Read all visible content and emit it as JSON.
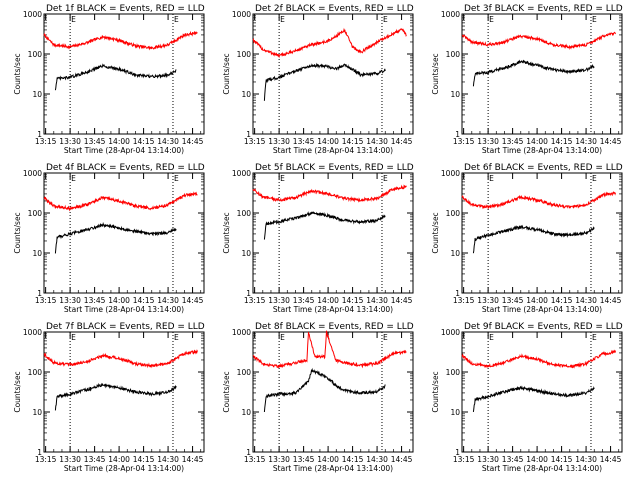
{
  "chart_data": [
    {
      "type": "line",
      "title": "Det 1f BLACK = Events, RED = LLD",
      "xlabel": "Start Time (28-Apr-04 13:14:00)",
      "ylabel": "Counts/sec",
      "x_ticks": [
        "13:15",
        "13:30",
        "13:45",
        "14:00",
        "14:15",
        "14:30",
        "14:45"
      ],
      "y_ticks": [
        "1",
        "10",
        "100",
        "1000"
      ],
      "ylim": [
        1,
        1000
      ],
      "y_scale": "log",
      "markers": [
        {
          "label": "E",
          "x": "13:30"
        },
        {
          "label": "E",
          "x": "14:33"
        }
      ],
      "series": [
        {
          "name": "RED",
          "color": "#ff0000",
          "x": [
            "13:14",
            "13:20",
            "13:30",
            "13:40",
            "13:50",
            "14:00",
            "14:10",
            "14:20",
            "14:30",
            "14:40",
            "14:48"
          ],
          "values": [
            300,
            170,
            150,
            190,
            270,
            220,
            160,
            140,
            170,
            300,
            340
          ]
        },
        {
          "name": "BLACK",
          "color": "#000000",
          "x": [
            "13:21",
            "13:22",
            "13:30",
            "13:40",
            "13:50",
            "14:00",
            "14:10",
            "14:20",
            "14:30",
            "14:35"
          ],
          "values": [
            13,
            24,
            26,
            35,
            50,
            42,
            30,
            27,
            30,
            38
          ]
        }
      ]
    },
    {
      "type": "line",
      "title": "Det 2f BLACK = Events, RED = LLD",
      "xlabel": "Start Time (28-Apr-04 13:14:00)",
      "ylabel": "Counts/sec",
      "x_ticks": [
        "13:15",
        "13:30",
        "13:45",
        "14:00",
        "14:15",
        "14:30",
        "14:45"
      ],
      "y_ticks": [
        "1",
        "10",
        "100",
        "1000"
      ],
      "ylim": [
        1,
        1000
      ],
      "y_scale": "log",
      "markers": [
        {
          "label": "E",
          "x": "13:30"
        },
        {
          "label": "E",
          "x": "14:33"
        }
      ],
      "series": [
        {
          "name": "RED",
          "color": "#ff0000",
          "x": [
            "13:14",
            "13:20",
            "13:30",
            "13:40",
            "13:50",
            "14:00",
            "14:05",
            "14:10",
            "14:15",
            "14:20",
            "14:30",
            "14:40",
            "14:45",
            "14:48"
          ],
          "values": [
            230,
            130,
            90,
            120,
            170,
            210,
            280,
            400,
            150,
            110,
            200,
            320,
            420,
            300
          ]
        },
        {
          "name": "BLACK",
          "color": "#000000",
          "x": [
            "13:21",
            "13:22",
            "13:30",
            "13:40",
            "13:50",
            "14:00",
            "14:05",
            "14:10",
            "14:20",
            "14:30",
            "14:35"
          ],
          "values": [
            7,
            22,
            26,
            38,
            52,
            48,
            42,
            55,
            30,
            32,
            40
          ]
        }
      ]
    },
    {
      "type": "line",
      "title": "Det 3f BLACK = Events, RED = LLD",
      "xlabel": "Start Time (28-Apr-04 13:14:00)",
      "ylabel": "Counts/sec",
      "x_ticks": [
        "13:15",
        "13:30",
        "13:45",
        "14:00",
        "14:15",
        "14:30",
        "14:45"
      ],
      "y_ticks": [
        "1",
        "10",
        "100",
        "1000"
      ],
      "ylim": [
        1,
        1000
      ],
      "y_scale": "log",
      "markers": [
        {
          "label": "E",
          "x": "13:30"
        },
        {
          "label": "E",
          "x": "14:33"
        }
      ],
      "series": [
        {
          "name": "RED",
          "color": "#ff0000",
          "x": [
            "13:14",
            "13:20",
            "13:30",
            "13:40",
            "13:50",
            "14:00",
            "14:10",
            "14:20",
            "14:30",
            "14:40",
            "14:48"
          ],
          "values": [
            300,
            200,
            170,
            200,
            280,
            240,
            170,
            150,
            170,
            270,
            330
          ]
        },
        {
          "name": "BLACK",
          "color": "#000000",
          "x": [
            "13:21",
            "13:22",
            "13:30",
            "13:40",
            "13:50",
            "14:00",
            "14:10",
            "14:20",
            "14:30",
            "14:35"
          ],
          "values": [
            16,
            32,
            35,
            45,
            65,
            52,
            40,
            36,
            40,
            50
          ]
        }
      ]
    },
    {
      "type": "line",
      "title": "Det 4f BLACK = Events, RED = LLD",
      "xlabel": "Start Time (28-Apr-04 13:14:00)",
      "ylabel": "Counts/sec",
      "x_ticks": [
        "13:15",
        "13:30",
        "13:45",
        "14:00",
        "14:15",
        "14:30",
        "14:45"
      ],
      "y_ticks": [
        "1",
        "10",
        "100",
        "1000"
      ],
      "ylim": [
        1,
        1000
      ],
      "y_scale": "log",
      "markers": [
        {
          "label": "E",
          "x": "13:30"
        },
        {
          "label": "E",
          "x": "14:33"
        }
      ],
      "series": [
        {
          "name": "RED",
          "color": "#ff0000",
          "x": [
            "13:14",
            "13:20",
            "13:30",
            "13:40",
            "13:50",
            "14:00",
            "14:10",
            "14:20",
            "14:30",
            "14:40",
            "14:48"
          ],
          "values": [
            240,
            150,
            130,
            160,
            240,
            200,
            150,
            130,
            160,
            280,
            300
          ]
        },
        {
          "name": "BLACK",
          "color": "#000000",
          "x": [
            "13:21",
            "13:22",
            "13:30",
            "13:40",
            "13:50",
            "14:00",
            "14:10",
            "14:20",
            "14:30",
            "14:35"
          ],
          "values": [
            10,
            25,
            30,
            38,
            50,
            42,
            35,
            30,
            32,
            40
          ]
        }
      ]
    },
    {
      "type": "line",
      "title": "Det 5f BLACK = Events, RED = LLD",
      "xlabel": "Start Time (28-Apr-04 13:14:00)",
      "ylabel": "Counts/sec",
      "x_ticks": [
        "13:15",
        "13:30",
        "13:45",
        "14:00",
        "14:15",
        "14:30",
        "14:45"
      ],
      "y_ticks": [
        "1",
        "10",
        "100",
        "1000"
      ],
      "ylim": [
        1,
        1000
      ],
      "y_scale": "log",
      "markers": [
        {
          "label": "E",
          "x": "13:30"
        },
        {
          "label": "E",
          "x": "14:33"
        }
      ],
      "series": [
        {
          "name": "RED",
          "color": "#ff0000",
          "x": [
            "13:14",
            "13:20",
            "13:30",
            "13:40",
            "13:50",
            "14:00",
            "14:10",
            "14:20",
            "14:30",
            "14:40",
            "14:48"
          ],
          "values": [
            400,
            250,
            210,
            240,
            360,
            300,
            230,
            210,
            230,
            400,
            450
          ]
        },
        {
          "name": "BLACK",
          "color": "#000000",
          "x": [
            "13:21",
            "13:22",
            "13:30",
            "13:40",
            "13:50",
            "14:00",
            "14:10",
            "14:20",
            "14:30",
            "14:35"
          ],
          "values": [
            22,
            55,
            60,
            75,
            100,
            85,
            65,
            60,
            65,
            85
          ]
        }
      ]
    },
    {
      "type": "line",
      "title": "Det 6f BLACK = Events, RED = LLD",
      "xlabel": "Start Time (28-Apr-04 13:14:00)",
      "ylabel": "Counts/sec",
      "x_ticks": [
        "13:15",
        "13:30",
        "13:45",
        "14:00",
        "14:15",
        "14:30",
        "14:45"
      ],
      "y_ticks": [
        "1",
        "10",
        "100",
        "1000"
      ],
      "ylim": [
        1,
        1000
      ],
      "y_scale": "log",
      "markers": [
        {
          "label": "E",
          "x": "13:30"
        },
        {
          "label": "E",
          "x": "14:33"
        }
      ],
      "series": [
        {
          "name": "RED",
          "color": "#ff0000",
          "x": [
            "13:14",
            "13:20",
            "13:30",
            "13:40",
            "13:50",
            "14:00",
            "14:10",
            "14:20",
            "14:30",
            "14:40",
            "14:48"
          ],
          "values": [
            250,
            160,
            140,
            170,
            250,
            210,
            160,
            140,
            160,
            280,
            310
          ]
        },
        {
          "name": "BLACK",
          "color": "#000000",
          "x": [
            "13:21",
            "13:22",
            "13:30",
            "13:40",
            "13:50",
            "14:00",
            "14:10",
            "14:20",
            "14:30",
            "14:35"
          ],
          "values": [
            10,
            22,
            28,
            35,
            45,
            38,
            30,
            28,
            32,
            42
          ]
        }
      ]
    },
    {
      "type": "line",
      "title": "Det 7f BLACK = Events, RED = LLD",
      "xlabel": "Start Time (28-Apr-04 13:14:00)",
      "ylabel": "Counts/sec",
      "x_ticks": [
        "13:15",
        "13:30",
        "13:45",
        "14:00",
        "14:15",
        "14:30",
        "14:45"
      ],
      "y_ticks": [
        "1",
        "10",
        "100",
        "1000"
      ],
      "ylim": [
        1,
        1000
      ],
      "y_scale": "log",
      "markers": [
        {
          "label": "E",
          "x": "13:30"
        },
        {
          "label": "E",
          "x": "14:33"
        }
      ],
      "series": [
        {
          "name": "RED",
          "color": "#ff0000",
          "x": [
            "13:14",
            "13:20",
            "13:30",
            "13:40",
            "13:50",
            "14:00",
            "14:10",
            "14:20",
            "14:30",
            "14:40",
            "14:48"
          ],
          "values": [
            280,
            170,
            150,
            180,
            260,
            220,
            160,
            140,
            165,
            290,
            320
          ]
        },
        {
          "name": "BLACK",
          "color": "#000000",
          "x": [
            "13:21",
            "13:22",
            "13:30",
            "13:40",
            "13:50",
            "14:00",
            "14:10",
            "14:20",
            "14:30",
            "14:35"
          ],
          "values": [
            11,
            24,
            28,
            36,
            48,
            40,
            32,
            28,
            32,
            42
          ]
        }
      ]
    },
    {
      "type": "line",
      "title": "Det 8f BLACK = Events, RED = LLD",
      "xlabel": "Start Time (28-Apr-04 13:14:00)",
      "ylabel": "Counts/sec",
      "x_ticks": [
        "13:15",
        "13:30",
        "13:45",
        "14:00",
        "14:15",
        "14:30",
        "14:45"
      ],
      "y_ticks": [
        "1",
        "10",
        "100",
        "1000"
      ],
      "ylim": [
        1,
        1000
      ],
      "y_scale": "log",
      "markers": [
        {
          "label": "E",
          "x": "13:30"
        },
        {
          "label": "E",
          "x": "14:33"
        }
      ],
      "series": [
        {
          "name": "RED",
          "color": "#ff0000",
          "x": [
            "13:14",
            "13:20",
            "13:30",
            "13:40",
            "13:47",
            "13:48",
            "13:52",
            "13:58",
            "13:59",
            "14:05",
            "14:15",
            "14:20",
            "14:30",
            "14:40",
            "14:48"
          ],
          "values": [
            260,
            160,
            140,
            170,
            200,
            1000,
            240,
            240,
            1000,
            190,
            160,
            145,
            165,
            290,
            320
          ]
        },
        {
          "name": "BLACK",
          "color": "#000000",
          "x": [
            "13:21",
            "13:22",
            "13:30",
            "13:40",
            "13:48",
            "13:50",
            "13:55",
            "14:00",
            "14:05",
            "14:10",
            "14:20",
            "14:30",
            "14:35"
          ],
          "values": [
            10,
            25,
            28,
            30,
            60,
            110,
            90,
            70,
            45,
            35,
            30,
            32,
            45
          ]
        }
      ]
    },
    {
      "type": "line",
      "title": "Det 9f BLACK = Events, RED = LLD",
      "xlabel": "Start Time (28-Apr-04 13:14:00)",
      "ylabel": "Counts/sec",
      "x_ticks": [
        "13:15",
        "13:30",
        "13:45",
        "14:00",
        "14:15",
        "14:30",
        "14:45"
      ],
      "y_ticks": [
        "1",
        "10",
        "100",
        "1000"
      ],
      "ylim": [
        1,
        1000
      ],
      "y_scale": "log",
      "markers": [
        {
          "label": "E",
          "x": "13:30"
        },
        {
          "label": "E",
          "x": "14:33"
        }
      ],
      "series": [
        {
          "name": "RED",
          "color": "#ff0000",
          "x": [
            "13:14",
            "13:20",
            "13:30",
            "13:40",
            "13:50",
            "14:00",
            "14:10",
            "14:20",
            "14:30",
            "14:40",
            "14:48"
          ],
          "values": [
            260,
            160,
            140,
            170,
            250,
            210,
            150,
            135,
            160,
            280,
            320
          ]
        },
        {
          "name": "BLACK",
          "color": "#000000",
          "x": [
            "13:21",
            "13:22",
            "13:30",
            "13:40",
            "13:50",
            "14:00",
            "14:10",
            "14:20",
            "14:30",
            "14:35"
          ],
          "values": [
            10,
            20,
            25,
            32,
            40,
            34,
            28,
            26,
            30,
            40
          ]
        }
      ]
    }
  ]
}
